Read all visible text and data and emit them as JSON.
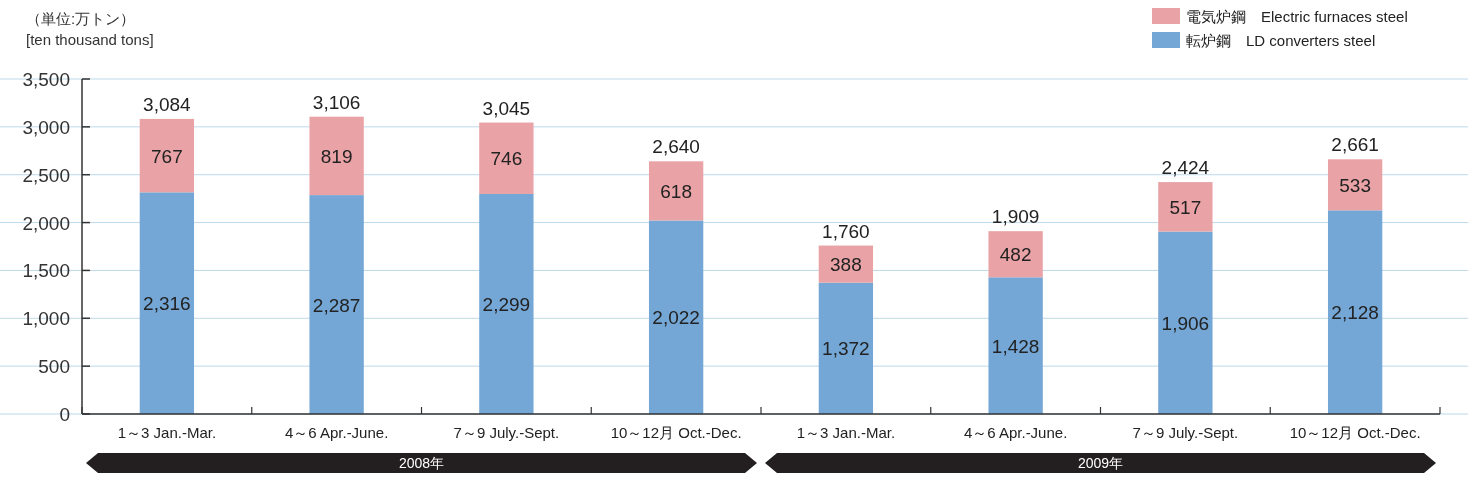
{
  "chart_data": {
    "type": "bar",
    "stacked": true,
    "ylabel": "（単位:万トン）\n[ten thousand tons]",
    "categories": [
      "1～3 Jan.-Mar.",
      "4～6 Apr.-June.",
      "7～9 July.-Sept.",
      "10～12月 Oct.-Dec.",
      "1～3 Jan.-Mar.",
      "4～6 Apr.-June.",
      "7～9 July.-Sept.",
      "10～12月 Oct.-Dec."
    ],
    "series": [
      {
        "name": "転炉鋼　LD converters steel",
        "color": "#74a7d6",
        "values": [
          2316,
          2287,
          2299,
          2022,
          1372,
          1428,
          1906,
          2128
        ],
        "value_labels": [
          "2,316",
          "2,287",
          "2,299",
          "2,022",
          "1,372",
          "1,428",
          "1,906",
          "2,128"
        ]
      },
      {
        "name": "電気炉鋼　Electric furnaces steel",
        "color": "#e9a3a6",
        "values": [
          767,
          819,
          746,
          618,
          388,
          482,
          517,
          533
        ],
        "value_labels": [
          "767",
          "819",
          "746",
          "618",
          "388",
          "482",
          "517",
          "533"
        ]
      }
    ],
    "totals": [
      "3,084",
      "3,106",
      "3,045",
      "2,640",
      "1,760",
      "1,909",
      "2,424",
      "2,661"
    ],
    "ylim": [
      0,
      3500
    ],
    "yticks": [
      0,
      {
        "value": 500,
        "label": "500"
      },
      {
        "value": 1000,
        "label": "1,000"
      },
      {
        "value": 1500,
        "label": "1,500"
      },
      {
        "value": 2000,
        "label": "2,000"
      },
      {
        "value": 2500,
        "label": "2,500"
      },
      {
        "value": 3000,
        "label": "3,000"
      },
      {
        "value": 3500,
        "label": "3,500"
      }
    ],
    "grid": "y",
    "legend": "top right",
    "annotations": [
      "2008年",
      "2009年"
    ]
  }
}
